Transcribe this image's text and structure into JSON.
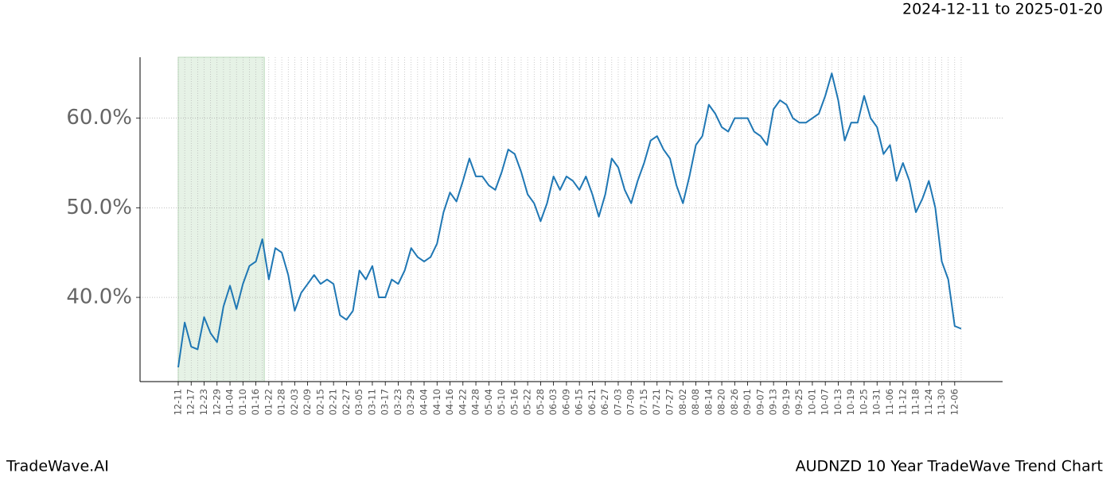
{
  "chart_data": {
    "type": "line",
    "date_range": "2024-12-11 to 2025-01-20",
    "brand": "TradeWave.AI",
    "title": "AUDNZD 10 Year TradeWave Trend Chart",
    "categories": [
      "12-11",
      null,
      "12-17",
      null,
      "12-23",
      null,
      "12-29",
      null,
      "01-04",
      null,
      "01-10",
      null,
      "01-16",
      null,
      "01-22",
      null,
      "01-28",
      null,
      "02-03",
      null,
      "02-09",
      null,
      "02-15",
      null,
      "02-21",
      null,
      "02-27",
      null,
      "03-05",
      null,
      "03-11",
      null,
      "03-17",
      null,
      "03-23",
      null,
      "03-29",
      null,
      "04-04",
      null,
      "04-10",
      null,
      "04-16",
      null,
      "04-22",
      null,
      "04-28",
      null,
      "05-04",
      null,
      "05-10",
      null,
      "05-16",
      null,
      "05-22",
      null,
      "05-28",
      null,
      "06-03",
      null,
      "06-09",
      null,
      "06-15",
      null,
      "06-21",
      null,
      "06-27",
      null,
      "07-03",
      null,
      "07-09",
      null,
      "07-15",
      null,
      "07-21",
      null,
      "07-27",
      null,
      "08-02",
      null,
      "08-08",
      null,
      "08-14",
      null,
      "08-20",
      null,
      "08-26",
      null,
      "09-01",
      null,
      "09-07",
      null,
      "09-13",
      null,
      "09-19",
      null,
      "09-25",
      null,
      "10-01",
      null,
      "10-07",
      null,
      "10-13",
      null,
      "10-19",
      null,
      "10-25",
      null,
      "10-31",
      null,
      "11-06",
      null,
      "11-12",
      null,
      "11-18",
      null,
      "11-24",
      null,
      "11-30",
      null,
      "12-06",
      null
    ],
    "series": [
      {
        "name": "AUDNZD",
        "color": "#1f77b4",
        "values": [
          32.2,
          37.2,
          34.5,
          34.2,
          37.8,
          36.0,
          35.0,
          39.0,
          41.3,
          38.7,
          41.5,
          43.5,
          44.0,
          46.5,
          42.0,
          45.5,
          45.0,
          42.5,
          38.5,
          40.5,
          41.5,
          42.5,
          41.5,
          42.0,
          41.5,
          38.0,
          37.5,
          38.5,
          43.0,
          42.0,
          43.5,
          40.0,
          40.0,
          42.0,
          41.5,
          43.0,
          45.5,
          44.5,
          44.0,
          44.5,
          46.0,
          49.5,
          51.7,
          50.7,
          53.0,
          55.5,
          53.5,
          53.5,
          52.5,
          52.0,
          54.0,
          56.5,
          56.0,
          54.0,
          51.5,
          50.5,
          48.5,
          50.5,
          53.5,
          52.0,
          53.5,
          53.0,
          52.0,
          53.5,
          51.5,
          49.0,
          51.5,
          55.5,
          54.5,
          52.0,
          50.5,
          53.0,
          55.0,
          57.5,
          58.0,
          56.5,
          55.5,
          52.5,
          50.5,
          53.5,
          57.0,
          58.0,
          61.5,
          60.5,
          59.0,
          58.5,
          60.0,
          60.0,
          60.0,
          58.5,
          58.0,
          57.0,
          61.0,
          62.0,
          61.5,
          60.0,
          59.5,
          59.5,
          60.0,
          60.5,
          62.5,
          65.0,
          62.0,
          57.5,
          59.5,
          59.5,
          62.5,
          60.0,
          59.0,
          56.0,
          57.0,
          53.0,
          55.0,
          53.0,
          49.5,
          51.0,
          53.0,
          50.0,
          44.0,
          42.0,
          36.8,
          36.5
        ]
      }
    ],
    "highlight": [
      0,
      13.3
    ],
    "xlim": [
      -5.9,
      127.4
    ],
    "ylim": [
      30.6,
      66.8
    ],
    "yticks": [
      {
        "value": 40,
        "label": "40.0%"
      },
      {
        "value": 50,
        "label": "50.0%"
      },
      {
        "value": 60,
        "label": "60.0%"
      }
    ],
    "grid": true
  }
}
